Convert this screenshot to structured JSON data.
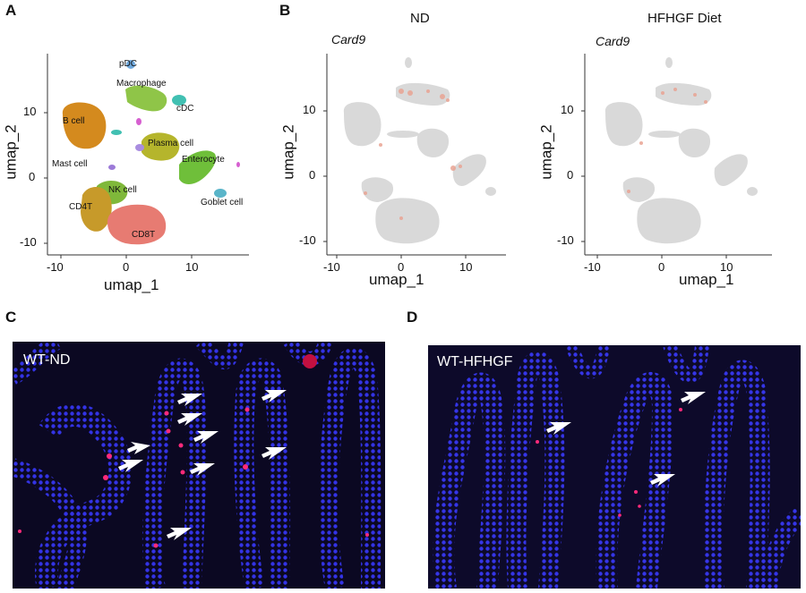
{
  "panels": {
    "A": {
      "letter": "A"
    },
    "B": {
      "letter": "B"
    },
    "C": {
      "letter": "C"
    },
    "D": {
      "letter": "D"
    }
  },
  "umap_axes": {
    "xlabel": "umap_1",
    "ylabel": "umap_2",
    "x_ticks": [
      "-10",
      "0",
      "10"
    ],
    "y_ticks": [
      "10",
      "0",
      "-10"
    ]
  },
  "panel_a": {
    "clusters": [
      {
        "label": "pDC",
        "color": "#6fa8dc"
      },
      {
        "label": "Macrophage",
        "color": "#8fc548"
      },
      {
        "label": "cDC",
        "color": "#41c0b2"
      },
      {
        "label": "B cell",
        "color": "#d48a1e"
      },
      {
        "label": "Plasma cell",
        "color": "#b5b52c"
      },
      {
        "label": "Enterocyte",
        "color": "#6fbf3a"
      },
      {
        "label": "Mast cell",
        "color": "#9c7ad8"
      },
      {
        "label": "NK cell",
        "color": "#7fb83a"
      },
      {
        "label": "CD4T",
        "color": "#c79a2a"
      },
      {
        "label": "Goblet cell",
        "color": "#5ab5c9"
      },
      {
        "label": "CD8T",
        "color": "#e77b72"
      }
    ]
  },
  "panel_b": {
    "gene": "Card9",
    "conditions": [
      {
        "title": "ND"
      },
      {
        "title": "HFHGF Diet"
      }
    ],
    "background_color": "#d9d9d9",
    "highlight_color": "#e9a493"
  },
  "panel_c": {
    "label": "WT-ND"
  },
  "panel_d": {
    "label": "WT-HFHGF"
  },
  "colors": {
    "nuclei": "#2b2bdc",
    "background": "#0b0822",
    "card9_signal": "#ff2a7a",
    "arrow": "#ffffff"
  }
}
